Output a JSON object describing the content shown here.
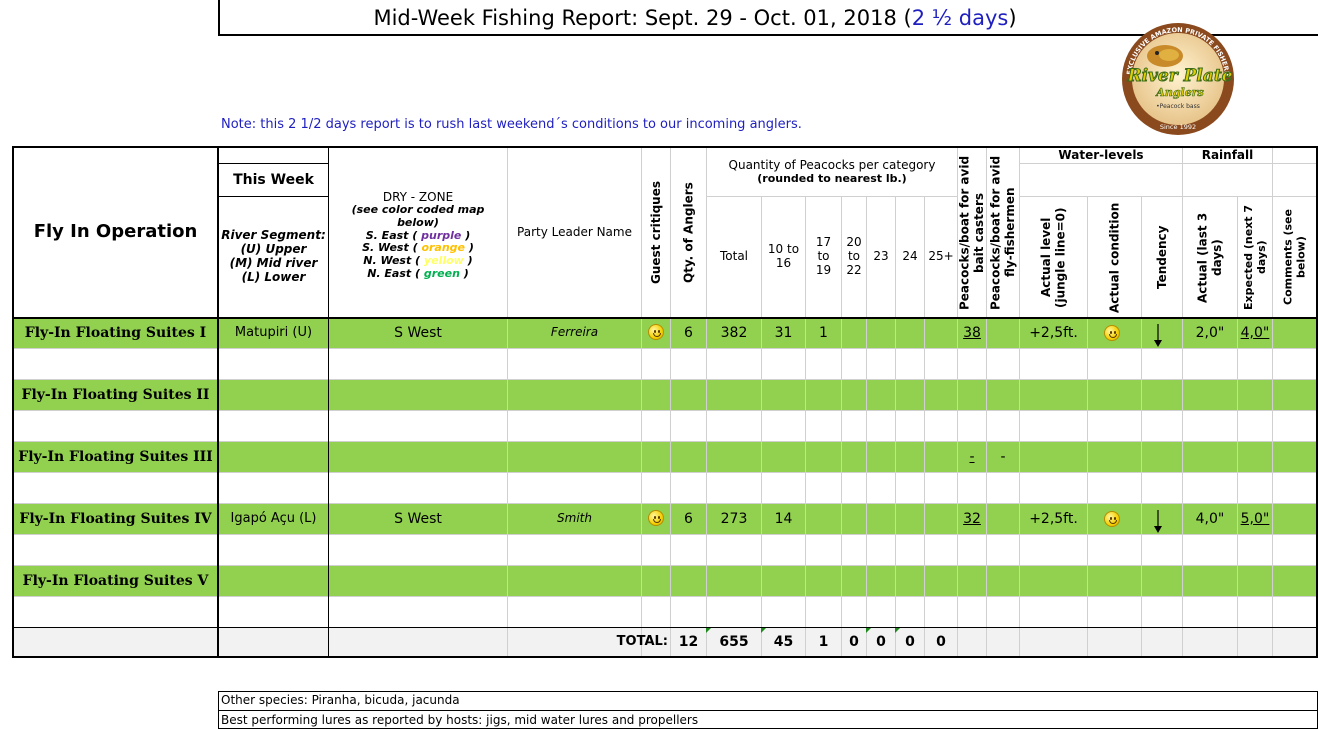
{
  "report": {
    "title_main": "Mid-Week Fishing Report:  Sept. 29 - Oct. 01, 2018 (",
    "title_days": "2 ½ days",
    "title_close": ")",
    "note": "Note:  this 2 1/2 days report is to rush last weekend´s conditions to our incoming anglers."
  },
  "logo": {
    "arc_text": "EXCLUSIVE AMAZON PRIVATE FISHERIES",
    "name1": "River Plate",
    "name2": "Anglers",
    "sub": "•Peacock bass",
    "since": "Since 1992"
  },
  "headers": {
    "operation": "Fly In Operation",
    "this_week": "This Week",
    "river_segment": "River Segment:",
    "upper": "(U) Upper",
    "mid": "(M) Mid river",
    "lower": "(L) Lower",
    "dry_zone": "DRY - ZONE",
    "see_map": "(see color coded map below)",
    "zone_se_pre": "S. East (",
    "zone_se_color": "purple",
    "zone_sw_pre": "S. West (",
    "zone_sw_color": "orange",
    "zone_nw_pre": "N. West (",
    "zone_nw_color": "yellow",
    "zone_ne_pre": "N. East (",
    "zone_ne_color": "green",
    "zone_close": ")",
    "party_leader": "Party Leader Name",
    "guest_critiques": "Guest critiques",
    "qty_anglers": "Qty. of Anglers",
    "qty_peacocks": "Quantity of Peacocks per category",
    "rounded": "(rounded to nearest lb.)",
    "total": "Total",
    "c10_16": "10 to 16",
    "c17_19": "17 to 19",
    "c20_22": "20 to 22",
    "c23": "23",
    "c24": "24",
    "c25": "25+",
    "pb_bait": "Peacocks/boat for avid bait casters",
    "pb_fly": "Peacocks/boat for avid fly-fishermen",
    "water_levels": "Water-levels",
    "actual_level": "Actual level (jungle line=0)",
    "actual_condition": "Actual condition",
    "tendency": "Tendency",
    "rainfall": "Rainfall",
    "actual_rain": "Actual (last 3 days)",
    "expected_rain": "Expected (next 7 days)",
    "comments": "Comments (see below)"
  },
  "rows": [
    {
      "name": "Fly-In Floating Suites I",
      "segment": "Matupiri (U)",
      "zone": "S West",
      "leader": "Ferreira",
      "critique": "smiley",
      "anglers": "6",
      "total": "382",
      "c10_16": "31",
      "c17_19": "1",
      "c20_22": "",
      "c23": "",
      "c24": "",
      "c25": "",
      "pb_bait": "38",
      "pb_fly": "",
      "level": "+2,5ft.",
      "condition": "smiley",
      "tendency": "down-arrow",
      "rain_actual": "2,0\"",
      "rain_expected": "4,0\""
    },
    {
      "name": "Fly-In Floating Suites II",
      "segment": "",
      "zone": "",
      "leader": "",
      "critique": "",
      "anglers": "",
      "total": "",
      "c10_16": "",
      "c17_19": "",
      "c20_22": "",
      "c23": "",
      "c24": "",
      "c25": "",
      "pb_bait": "",
      "pb_fly": "",
      "level": "",
      "condition": "",
      "tendency": "",
      "rain_actual": "",
      "rain_expected": ""
    },
    {
      "name": "Fly-In Floating Suites III",
      "segment": "",
      "zone": "",
      "leader": "",
      "critique": "",
      "anglers": "",
      "total": "",
      "c10_16": "",
      "c17_19": "",
      "c20_22": "",
      "c23": "",
      "c24": "",
      "c25": "",
      "pb_bait": "-",
      "pb_fly": "-",
      "level": "",
      "condition": "",
      "tendency": "",
      "rain_actual": "",
      "rain_expected": ""
    },
    {
      "name": "Fly-In Floating Suites IV",
      "segment": "Igapó Açu (L)",
      "zone": "S West",
      "leader": "Smith",
      "critique": "smiley",
      "anglers": "6",
      "total": "273",
      "c10_16": "14",
      "c17_19": "",
      "c20_22": "",
      "c23": "",
      "c24": "",
      "c25": "",
      "pb_bait": "32",
      "pb_fly": "",
      "level": "+2,5ft.",
      "condition": "smiley",
      "tendency": "down-arrow",
      "rain_actual": "4,0\"",
      "rain_expected": "5,0\""
    },
    {
      "name": "Fly-In Floating Suites V",
      "segment": "",
      "zone": "",
      "leader": "",
      "critique": "",
      "anglers": "",
      "total": "",
      "c10_16": "",
      "c17_19": "",
      "c20_22": "",
      "c23": "",
      "c24": "",
      "c25": "",
      "pb_bait": "",
      "pb_fly": "",
      "level": "",
      "condition": "",
      "tendency": "",
      "rain_actual": "",
      "rain_expected": ""
    }
  ],
  "totals": {
    "label": "TOTAL:",
    "anglers": "12",
    "total": "655",
    "c10_16": "45",
    "c17_19": "1",
    "c20_22": "0",
    "c23": "0",
    "c24": "0",
    "c25": "0"
  },
  "footer": {
    "other_species": "Other species: Piranha, bicuda, jacunda",
    "best_lures": "Best performing lures as reported by hosts: jigs, mid water lures and propellers"
  },
  "colors": {
    "row_green": "#92d050",
    "note_blue": "#1f1fbf",
    "purple": "#7030a0",
    "orange": "#ffc000",
    "yellow": "#ffff66",
    "green": "#00b050"
  }
}
